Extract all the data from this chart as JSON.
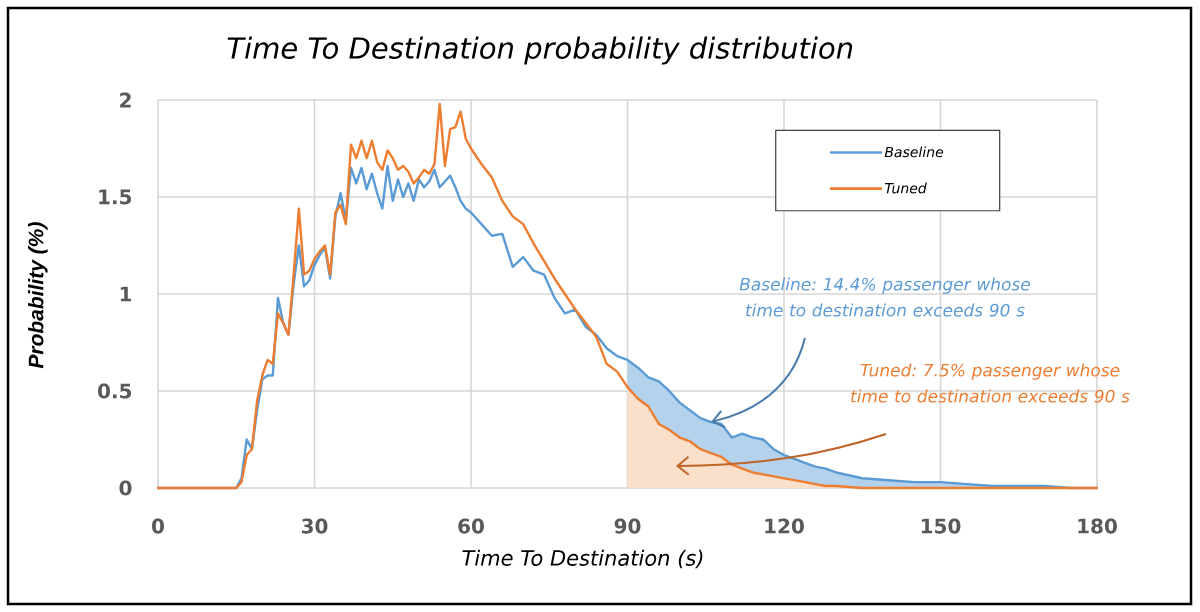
{
  "chart_data": {
    "type": "line",
    "title": "Time To Destination probability distribution",
    "xlabel": "Time To Destination (s)",
    "ylabel": "Probability (%)",
    "x": [
      0,
      15,
      16,
      17,
      18,
      19,
      20,
      21,
      22,
      23,
      24,
      25,
      26,
      27,
      28,
      29,
      30,
      31,
      32,
      33,
      34,
      35,
      36,
      37,
      38,
      39,
      40,
      41,
      42,
      43,
      44,
      45,
      46,
      47,
      48,
      49,
      50,
      51,
      52,
      53,
      54,
      55,
      56,
      57,
      58,
      59,
      60,
      62,
      64,
      66,
      68,
      70,
      72,
      74,
      76,
      78,
      80,
      82,
      84,
      86,
      88,
      90,
      92,
      94,
      96,
      98,
      100,
      102,
      104,
      106,
      108,
      110,
      112,
      114,
      116,
      118,
      120,
      122,
      124,
      126,
      128,
      130,
      135,
      140,
      145,
      150,
      155,
      160,
      165,
      170,
      175,
      180
    ],
    "series": [
      {
        "name": "Baseline",
        "color": "#5b9bd5",
        "values": [
          0,
          0,
          0.05,
          0.25,
          0.2,
          0.4,
          0.56,
          0.58,
          0.58,
          0.98,
          0.85,
          0.79,
          1.05,
          1.25,
          1.04,
          1.07,
          1.15,
          1.2,
          1.24,
          1.08,
          1.4,
          1.52,
          1.38,
          1.65,
          1.57,
          1.65,
          1.54,
          1.62,
          1.52,
          1.44,
          1.66,
          1.48,
          1.59,
          1.5,
          1.57,
          1.48,
          1.59,
          1.55,
          1.58,
          1.64,
          1.55,
          1.58,
          1.61,
          1.55,
          1.48,
          1.44,
          1.42,
          1.36,
          1.3,
          1.31,
          1.14,
          1.19,
          1.12,
          1.1,
          0.98,
          0.9,
          0.92,
          0.83,
          0.79,
          0.72,
          0.68,
          0.66,
          0.62,
          0.57,
          0.55,
          0.5,
          0.44,
          0.4,
          0.36,
          0.34,
          0.33,
          0.26,
          0.28,
          0.26,
          0.25,
          0.2,
          0.17,
          0.15,
          0.13,
          0.11,
          0.1,
          0.08,
          0.05,
          0.04,
          0.03,
          0.03,
          0.02,
          0.01,
          0.01,
          0.01,
          0,
          0
        ],
        "lower": [
          null,
          null,
          null,
          null,
          null,
          null,
          null,
          null,
          null,
          null,
          null,
          null,
          null,
          null,
          null,
          null,
          null,
          null,
          null,
          null,
          null,
          null,
          null,
          null,
          null,
          null,
          null,
          null,
          null,
          null,
          null,
          null,
          null,
          null,
          null,
          null,
          null,
          null,
          null,
          null,
          null,
          null,
          null,
          null,
          null,
          null,
          null,
          null,
          null,
          null,
          null,
          null,
          null,
          null,
          null,
          null,
          null,
          null,
          null,
          null,
          null,
          0.52,
          0.46,
          0.42,
          0.33,
          0.3,
          0.26,
          0.24,
          0.2,
          0.18,
          0.16,
          0.12,
          0.1,
          0.08,
          0.07,
          0.06,
          0.05,
          0.04,
          0.03,
          0.02,
          0.01,
          0.01,
          0,
          0,
          0,
          0,
          0,
          0,
          0,
          0,
          0,
          0
        ],
        "upper": [
          null,
          null,
          null,
          null,
          null,
          null,
          null,
          null,
          null,
          null,
          null,
          null,
          null,
          null,
          null,
          null,
          null,
          null,
          null,
          null,
          null,
          null,
          null,
          null,
          null,
          null,
          null,
          null,
          null,
          null,
          null,
          null,
          null,
          null,
          null,
          null,
          null,
          null,
          null,
          null,
          null,
          null,
          null,
          null,
          null,
          null,
          null,
          null,
          null,
          null,
          null,
          null,
          null,
          null,
          null,
          null,
          null,
          null,
          null,
          null,
          null,
          0.66,
          0.62,
          0.57,
          0.55,
          0.5,
          0.44,
          0.4,
          0.36,
          0.34,
          0.33,
          0.26,
          0.28,
          0.26,
          0.25,
          0.2,
          0.17,
          0.15,
          0.13,
          0.11,
          0.1,
          0.08,
          0.05,
          0.04,
          0.03,
          0.03,
          0.02,
          0.01,
          0.01,
          0.01,
          0,
          0
        ]
      },
      {
        "name": "Tuned",
        "color": "#ed7d31",
        "values": [
          0,
          0,
          0.03,
          0.17,
          0.2,
          0.45,
          0.58,
          0.66,
          0.64,
          0.9,
          0.85,
          0.79,
          1.1,
          1.44,
          1.1,
          1.12,
          1.18,
          1.22,
          1.25,
          1.1,
          1.42,
          1.46,
          1.36,
          1.77,
          1.7,
          1.79,
          1.7,
          1.79,
          1.68,
          1.64,
          1.74,
          1.7,
          1.64,
          1.66,
          1.63,
          1.57,
          1.6,
          1.64,
          1.62,
          1.67,
          1.98,
          1.66,
          1.85,
          1.86,
          1.94,
          1.8,
          1.75,
          1.67,
          1.6,
          1.48,
          1.4,
          1.36,
          1.26,
          1.17,
          1.08,
          1.0,
          0.92,
          0.85,
          0.78,
          0.64,
          0.6,
          0.52,
          0.46,
          0.42,
          0.33,
          0.3,
          0.26,
          0.24,
          0.2,
          0.18,
          0.16,
          0.12,
          0.1,
          0.08,
          0.07,
          0.06,
          0.05,
          0.04,
          0.03,
          0.02,
          0.01,
          0.01,
          0,
          0,
          0,
          0,
          0,
          0,
          0,
          0,
          0,
          0
        ],
        "lower": [
          null,
          null,
          null,
          null,
          null,
          null,
          null,
          null,
          null,
          null,
          null,
          null,
          null,
          null,
          null,
          null,
          null,
          null,
          null,
          null,
          null,
          null,
          null,
          null,
          null,
          null,
          null,
          null,
          null,
          null,
          null,
          null,
          null,
          null,
          null,
          null,
          null,
          null,
          null,
          null,
          null,
          null,
          null,
          null,
          null,
          null,
          null,
          null,
          null,
          null,
          null,
          null,
          null,
          null,
          null,
          null,
          null,
          null,
          null,
          null,
          null,
          0,
          0,
          0,
          0,
          0,
          0,
          0,
          0,
          0,
          0,
          0,
          0,
          0,
          0,
          0,
          0,
          0,
          0,
          0,
          0,
          0,
          0,
          0,
          0,
          0,
          0,
          0,
          0,
          0,
          0,
          0
        ],
        "upper": [
          null,
          null,
          null,
          null,
          null,
          null,
          null,
          null,
          null,
          null,
          null,
          null,
          null,
          null,
          null,
          null,
          null,
          null,
          null,
          null,
          null,
          null,
          null,
          null,
          null,
          null,
          null,
          null,
          null,
          null,
          null,
          null,
          null,
          null,
          null,
          null,
          null,
          null,
          null,
          null,
          null,
          null,
          null,
          null,
          null,
          null,
          null,
          null,
          null,
          null,
          null,
          null,
          null,
          null,
          null,
          null,
          null,
          null,
          null,
          null,
          null,
          0.52,
          0.46,
          0.42,
          0.33,
          0.3,
          0.26,
          0.24,
          0.2,
          0.18,
          0.16,
          0.12,
          0.1,
          0.08,
          0.07,
          0.06,
          0.05,
          0.04,
          0.03,
          0.02,
          0.01,
          0.01,
          0,
          0,
          0,
          0,
          0,
          0,
          0,
          0,
          0,
          0
        ]
      }
    ],
    "xlim": [
      0,
      180
    ],
    "ylim": [
      0,
      2
    ],
    "xticks": [
      0,
      30,
      60,
      90,
      120,
      150,
      180
    ],
    "yticks": [
      0,
      0.5,
      1,
      1.5,
      2
    ],
    "grid": true,
    "legend": "top right",
    "line_style": "solid",
    "annotations": [
      {
        "text": "Baseline: 14.4% passenger whose time to destination exceeds 90 s",
        "x": 106,
        "y": 0.34
      },
      "Tuned: 7.5% passenger whose time to destination exceeds 90 s"
    ]
  }
}
